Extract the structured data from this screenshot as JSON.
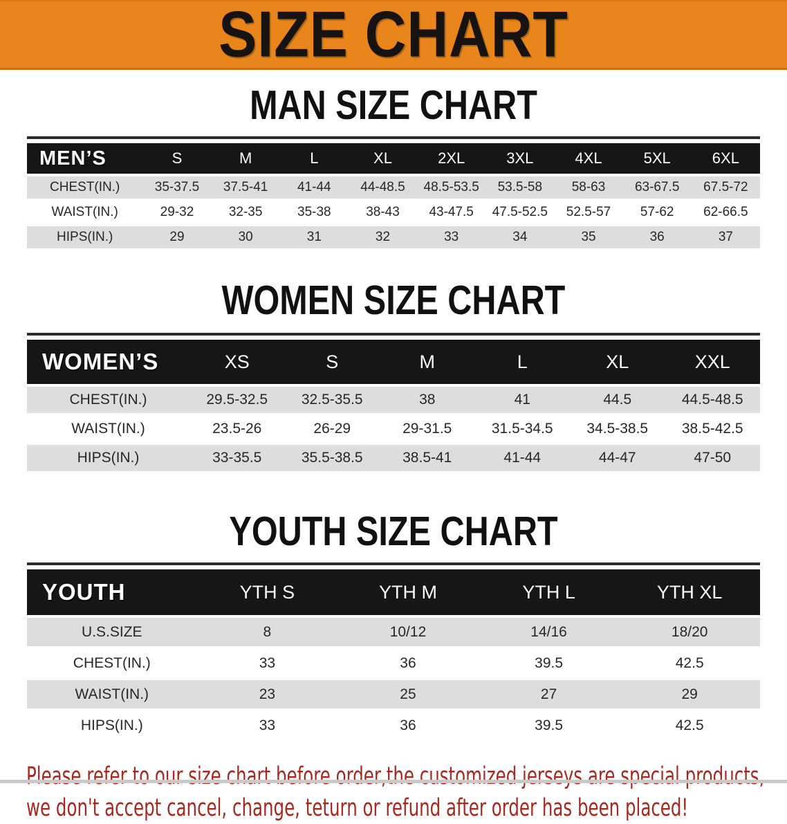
{
  "banner": {
    "title": "SIZE CHART"
  },
  "sections": {
    "men": {
      "heading": "MAN SIZE CHART",
      "table": {
        "label": "MEN’S",
        "sizes": [
          "S",
          "M",
          "L",
          "XL",
          "2XL",
          "3XL",
          "4XL",
          "5XL",
          "6XL"
        ],
        "rows": [
          {
            "label": "CHEST(IN.)",
            "values": [
              "35-37.5",
              "37.5-41",
              "41-44",
              "44-48.5",
              "48.5-53.5",
              "53.5-58",
              "58-63",
              "63-67.5",
              "67.5-72"
            ]
          },
          {
            "label": "WAIST(IN.)",
            "values": [
              "29-32",
              "32-35",
              "35-38",
              "38-43",
              "43-47.5",
              "47.5-52.5",
              "52.5-57",
              "57-62",
              "62-66.5"
            ]
          },
          {
            "label": "HIPS(IN.)",
            "values": [
              "29",
              "30",
              "31",
              "32",
              "33",
              "34",
              "35",
              "36",
              "37"
            ]
          }
        ]
      }
    },
    "women": {
      "heading": "WOMEN SIZE CHART",
      "table": {
        "label": "WOMEN’S",
        "sizes": [
          "XS",
          "S",
          "M",
          "L",
          "XL",
          "XXL"
        ],
        "rows": [
          {
            "label": "CHEST(IN.)",
            "values": [
              "29.5-32.5",
              "32.5-35.5",
              "38",
              "41",
              "44.5",
              "44.5-48.5"
            ]
          },
          {
            "label": "WAIST(IN.)",
            "values": [
              "23.5-26",
              "26-29",
              "29-31.5",
              "31.5-34.5",
              "34.5-38.5",
              "38.5-42.5"
            ]
          },
          {
            "label": "HIPS(IN.)",
            "values": [
              "33-35.5",
              "35.5-38.5",
              "38.5-41",
              "41-44",
              "44-47",
              "47-50"
            ]
          }
        ]
      }
    },
    "youth": {
      "heading": "YOUTH SIZE CHART",
      "table": {
        "label": "YOUTH",
        "sizes": [
          "YTH S",
          "YTH M",
          "YTH L",
          "YTH XL"
        ],
        "rows": [
          {
            "label": "U.S.SIZE",
            "values": [
              "8",
              "10/12",
              "14/16",
              "18/20"
            ]
          },
          {
            "label": "CHEST(IN.)",
            "values": [
              "33",
              "36",
              "39.5",
              "42.5"
            ]
          },
          {
            "label": "WAIST(IN.)",
            "values": [
              "23",
              "25",
              "27",
              "29"
            ]
          },
          {
            "label": "HIPS(IN.)",
            "values": [
              "33",
              "36",
              "39.5",
              "42.5"
            ]
          }
        ]
      }
    }
  },
  "disclaimer": {
    "line1": "Please refer to our size chart before order,the customized jerseys are special products,",
    "line2": "we don't accept cancel, change, teturn or refund after order has been placed!"
  },
  "colors": {
    "banner_orange": "#E8861C",
    "table_header_black": "#161616",
    "row_gray": "#DDDDDD",
    "disclaimer_red": "#A5291F",
    "bottom_strip_gray": "#C9C9C9"
  }
}
